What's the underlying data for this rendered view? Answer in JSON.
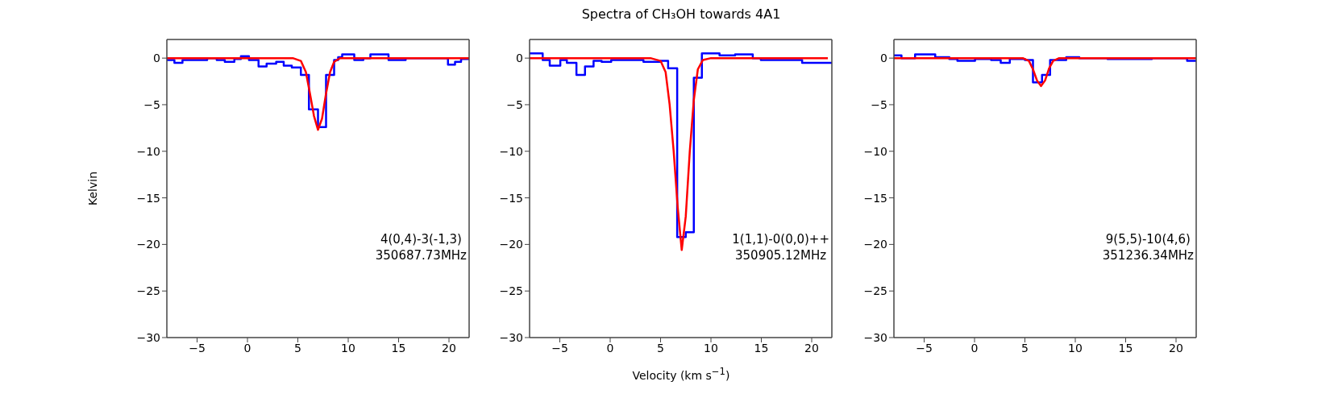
{
  "chart_data": [
    {
      "type": "line",
      "ylabel": "Kelvin",
      "xlim": [
        -8,
        22
      ],
      "ylim": [
        -30,
        2
      ],
      "xticks": [
        -5,
        0,
        5,
        10,
        15,
        20
      ],
      "yticks": [
        -30,
        -25,
        -20,
        -15,
        -10,
        -5,
        0
      ],
      "grid": false,
      "marker": "none",
      "annotations": [
        "4(0,4)-3(-1,3)",
        "350687.73MHz"
      ],
      "series": [
        {
          "type": "step",
          "color": "#0000ff",
          "x": [
            -8,
            -7.25,
            -6.45,
            -4.0,
            -3.05,
            -2.25,
            -1.3,
            -0.65,
            0.15,
            1.1,
            1.9,
            2.85,
            3.6,
            4.4,
            5.3,
            6.1,
            7.0,
            7.8,
            8.6,
            9.0,
            9.4,
            10.6,
            11.5,
            12.2,
            14.0,
            15.7,
            19.9,
            20.6,
            21.2,
            22
          ],
          "values": [
            -0.2,
            -0.5,
            -0.2,
            0,
            -0.2,
            -0.4,
            -0.1,
            0.2,
            -0.2,
            -0.9,
            -0.6,
            -0.4,
            -0.8,
            -1.0,
            -1.8,
            -5.5,
            -7.4,
            -1.8,
            -0.2,
            0.1,
            0.4,
            -0.2,
            0,
            0.4,
            -0.2,
            0,
            -0.7,
            -0.4,
            -0.1,
            0
          ]
        },
        {
          "color": "#ff0000",
          "x": [
            -8,
            4.5,
            5.3,
            5.8,
            6.2,
            6.6,
            7.0,
            7.4,
            7.8,
            8.2,
            8.6,
            9.2,
            22
          ],
          "values": [
            0,
            0,
            -0.3,
            -1.5,
            -3.8,
            -6.2,
            -7.7,
            -6.5,
            -3.8,
            -1.5,
            -0.4,
            0,
            0
          ]
        }
      ]
    },
    {
      "type": "line",
      "title": "Spectra of CH₃OH towards 4A1",
      "xlabel": "Velocity (km s$^{−1}$)",
      "xlim": [
        -8,
        22
      ],
      "ylim": [
        -30,
        2
      ],
      "xticks": [
        -5,
        0,
        5,
        10,
        15,
        20
      ],
      "yticks": [
        -30,
        -25,
        -20,
        -15,
        -10,
        -5,
        0
      ],
      "grid": false,
      "marker": "none",
      "annotations": [
        "1(1,1)-0(0,0)++",
        "350905.12MHz"
      ],
      "series": [
        {
          "type": "step",
          "color": "#0000ff",
          "x": [
            -8,
            -6.7,
            -6.0,
            -4.95,
            -4.3,
            -3.35,
            -2.5,
            -1.65,
            -0.85,
            0.1,
            3.3,
            5.0,
            5.75,
            6.65,
            7.5,
            8.3,
            9.1,
            10.85,
            12.4,
            14.15,
            14.95,
            16.8,
            19.05,
            22
          ],
          "values": [
            0.5,
            -0.2,
            -0.8,
            -0.2,
            -0.5,
            -1.8,
            -0.9,
            -0.3,
            -0.4,
            -0.2,
            -0.4,
            -0.3,
            -1.1,
            -19.2,
            -18.7,
            -2.1,
            0.5,
            0.3,
            0.4,
            0,
            -0.2,
            -0.2,
            -0.5,
            -0.5
          ]
        },
        {
          "color": "#ff0000",
          "x": [
            -8,
            4.0,
            5.0,
            5.5,
            5.9,
            6.3,
            6.7,
            7.1,
            7.5,
            7.9,
            8.3,
            8.7,
            9.2,
            10,
            21.6
          ],
          "values": [
            0,
            0,
            -0.3,
            -1.5,
            -5,
            -10,
            -16,
            -20.6,
            -17,
            -10,
            -4.5,
            -1.2,
            -0.2,
            0,
            0
          ]
        }
      ]
    },
    {
      "type": "line",
      "xlim": [
        -8,
        22
      ],
      "ylim": [
        -30,
        2
      ],
      "xticks": [
        -5,
        0,
        5,
        10,
        15,
        20
      ],
      "yticks": [
        -30,
        -25,
        -20,
        -15,
        -10,
        -5,
        0
      ],
      "grid": false,
      "marker": "none",
      "annotations": [
        "9(5,5)-10(4,6)",
        "351236.34MHz"
      ],
      "series": [
        {
          "type": "step",
          "color": "#0000ff",
          "x": [
            -8,
            -7.25,
            -5.9,
            -3.9,
            -2.5,
            -1.7,
            0.05,
            1.65,
            2.6,
            3.5,
            5.0,
            5.8,
            6.7,
            7.5,
            9.1,
            10.4,
            13.2,
            15.7,
            17.6,
            21.1,
            22
          ],
          "values": [
            0.3,
            0,
            0.4,
            0.1,
            -0.1,
            -0.3,
            -0.1,
            -0.2,
            -0.5,
            -0.1,
            -0.2,
            -2.6,
            -1.8,
            -0.2,
            0.1,
            0,
            -0.1,
            -0.1,
            0,
            -0.3,
            -0.3
          ]
        },
        {
          "color": "#ff0000",
          "x": [
            -8,
            4.8,
            5.4,
            5.8,
            6.2,
            6.6,
            7.0,
            7.4,
            7.8,
            8.4,
            22
          ],
          "values": [
            0,
            0,
            -0.3,
            -1.2,
            -2.4,
            -3.0,
            -2.4,
            -1.1,
            -0.3,
            0,
            0
          ]
        }
      ]
    }
  ]
}
